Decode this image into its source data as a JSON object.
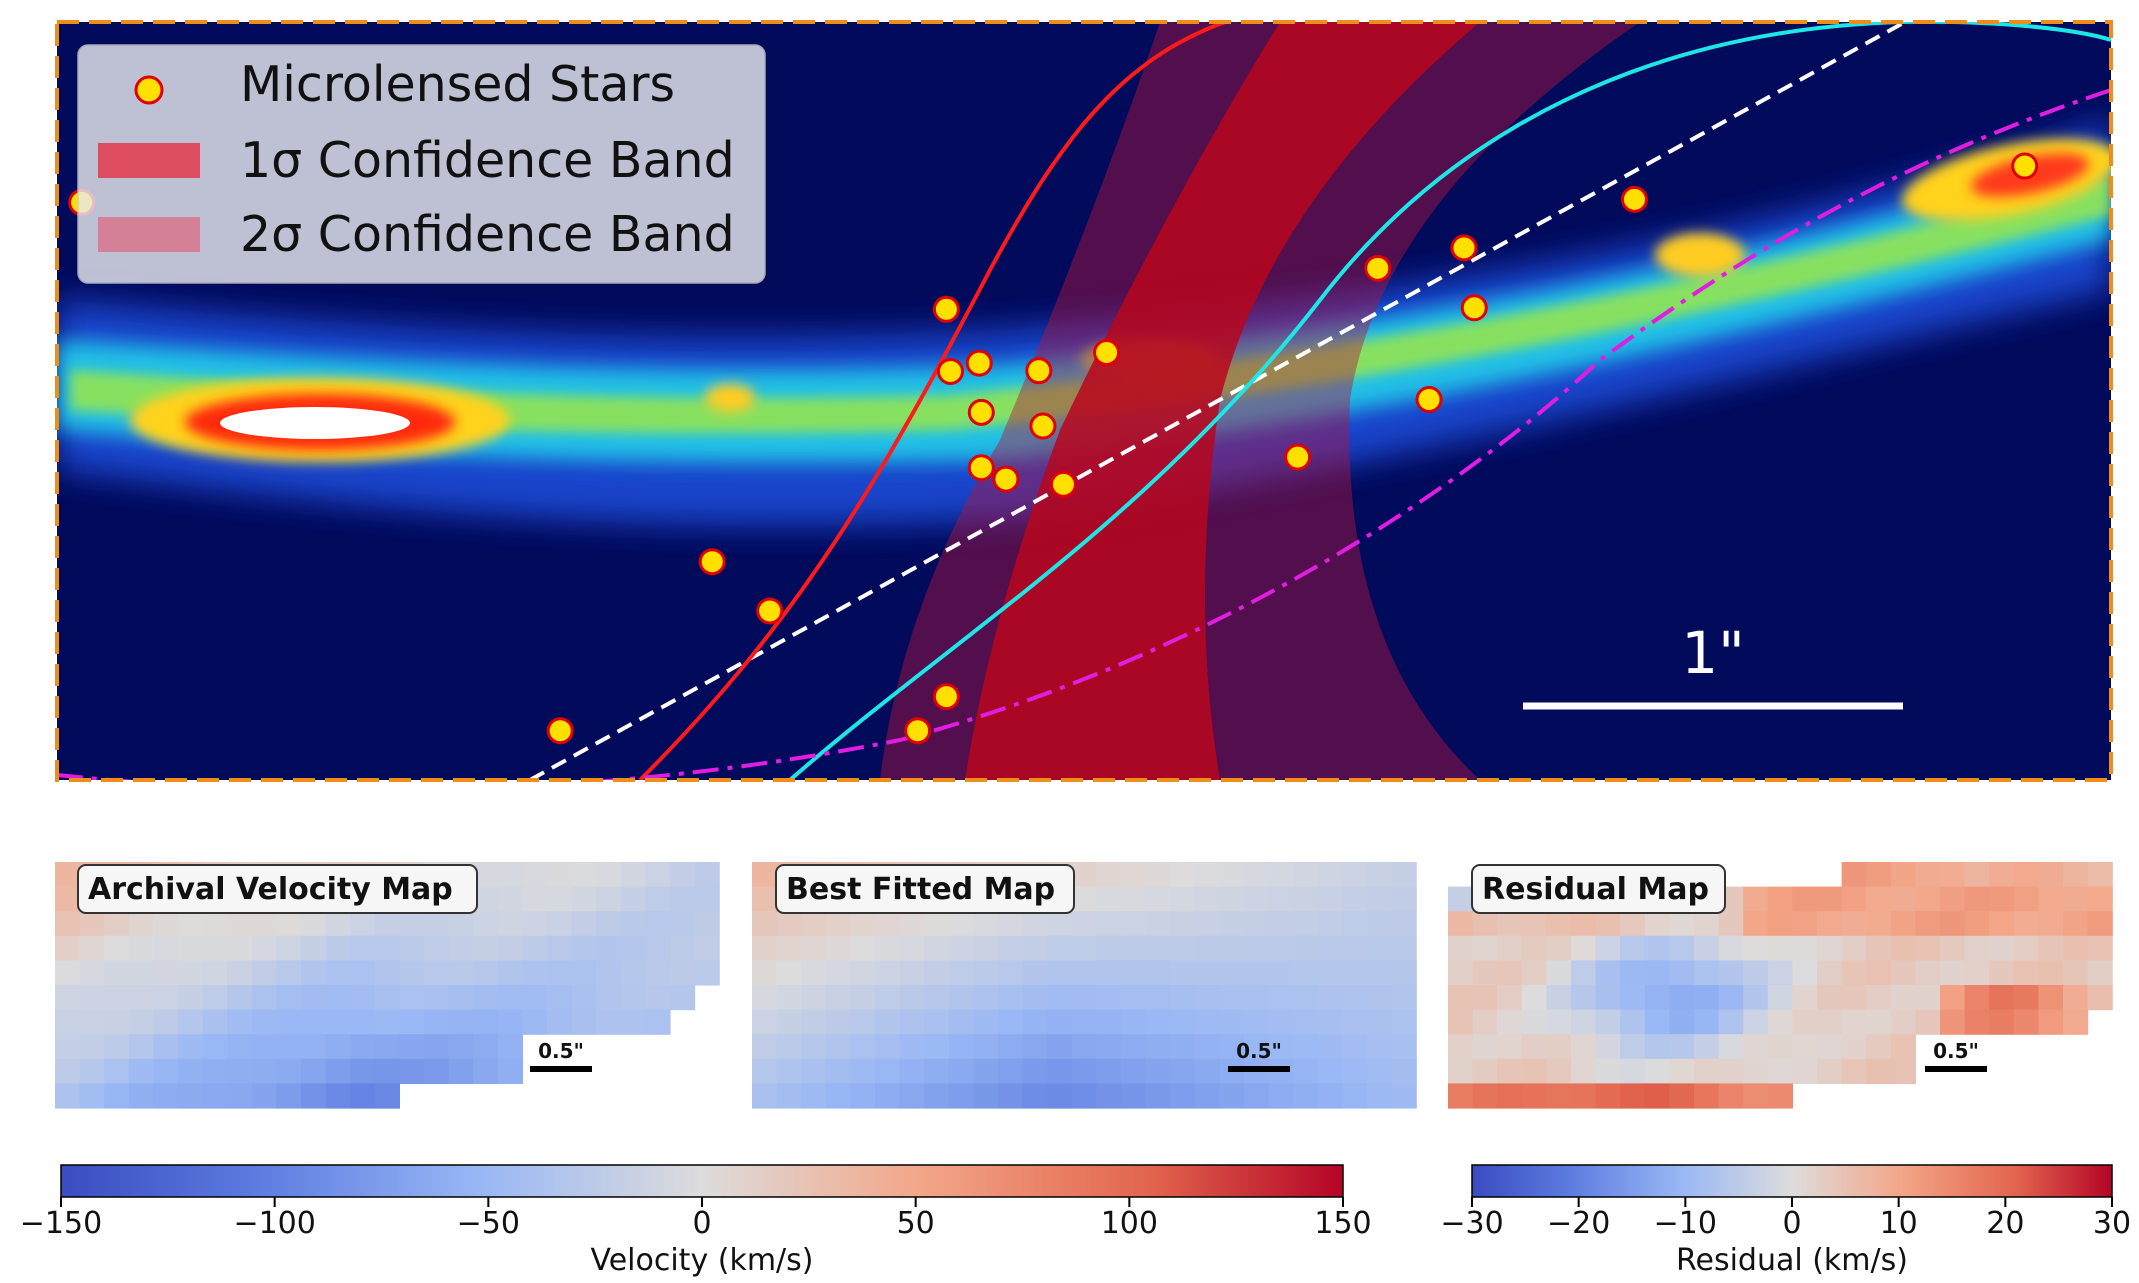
{
  "chart_data": [
    {
      "type": "scatter",
      "panel": "main",
      "title": "",
      "background": "intensity map (jet colormap)",
      "legend": {
        "placement": "top-left",
        "entries": [
          {
            "label": "Microlensed Stars",
            "color": "#ffe000",
            "edge": "#e00000"
          },
          {
            "label": "1σ Confidence Band",
            "color": "#e23a4a"
          },
          {
            "label": "2σ Confidence Band",
            "color": "#d9708a"
          }
        ]
      },
      "scale_bar_label": "1\"",
      "microlensed_stars": [
        {
          "x": 0.012,
          "y": 0.762
        },
        {
          "x": 0.245,
          "y": 0.065
        },
        {
          "x": 0.319,
          "y": 0.288
        },
        {
          "x": 0.347,
          "y": 0.223
        },
        {
          "x": 0.419,
          "y": 0.065
        },
        {
          "x": 0.433,
          "y": 0.11
        },
        {
          "x": 0.433,
          "y": 0.621
        },
        {
          "x": 0.45,
          "y": 0.485
        },
        {
          "x": 0.45,
          "y": 0.412
        },
        {
          "x": 0.435,
          "y": 0.539
        },
        {
          "x": 0.449,
          "y": 0.55
        },
        {
          "x": 0.462,
          "y": 0.397
        },
        {
          "x": 0.478,
          "y": 0.54
        },
        {
          "x": 0.48,
          "y": 0.467
        },
        {
          "x": 0.49,
          "y": 0.39
        },
        {
          "x": 0.511,
          "y": 0.564
        },
        {
          "x": 0.604,
          "y": 0.426
        },
        {
          "x": 0.643,
          "y": 0.675
        },
        {
          "x": 0.668,
          "y": 0.502
        },
        {
          "x": 0.685,
          "y": 0.702
        },
        {
          "x": 0.69,
          "y": 0.623
        },
        {
          "x": 0.768,
          "y": 0.766
        },
        {
          "x": 0.958,
          "y": 0.81
        }
      ]
    },
    {
      "type": "heatmap",
      "panel": "archival",
      "title": "Archival Velocity Map",
      "scale_bar_label": "0.5\"",
      "colormap": "coolwarm",
      "units": "km/s"
    },
    {
      "type": "heatmap",
      "panel": "best_fit",
      "title": "Best Fitted Map",
      "scale_bar_label": "0.5\"",
      "colormap": "coolwarm",
      "units": "km/s"
    },
    {
      "type": "heatmap",
      "panel": "residual",
      "title": "Residual Map",
      "scale_bar_label": "0.5\"",
      "colormap": "coolwarm",
      "units": "km/s"
    }
  ],
  "colorbars": {
    "velocity": {
      "label": "Velocity (km/s)",
      "range": [
        -150,
        150
      ],
      "ticks": [
        "−150",
        "−100",
        "−50",
        "0",
        "50",
        "100",
        "150"
      ],
      "tick_values": [
        -150,
        -100,
        -50,
        0,
        50,
        100,
        150
      ]
    },
    "residual": {
      "label": "Residual (km/s)",
      "range": [
        -30,
        30
      ],
      "ticks": [
        "−30",
        "−20",
        "−10",
        "0",
        "10",
        "20",
        "30"
      ],
      "tick_values": [
        -30,
        -20,
        -10,
        0,
        10,
        20,
        30
      ]
    }
  },
  "colors": {
    "background_dark": "#020a5c",
    "border_dashed": "#f08c1a",
    "curve_red": "#ff1a1a",
    "curve_cyan": "#1ee6e6",
    "curve_magenta": "#e11de1",
    "line_white": "#ffffff"
  }
}
